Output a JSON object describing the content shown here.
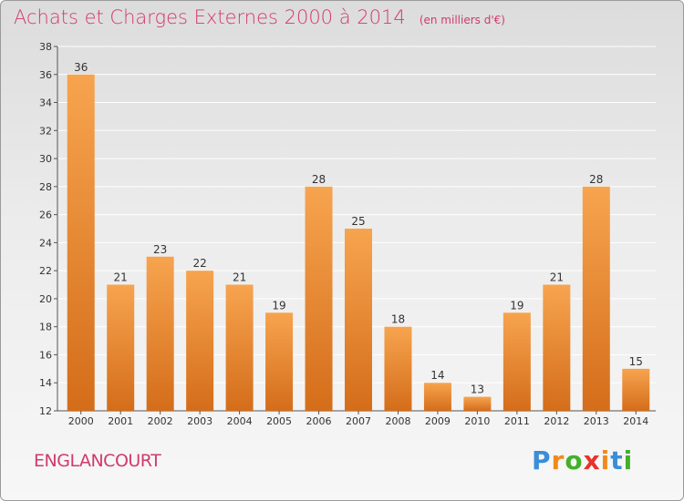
{
  "title": "Achats et Charges Externes 2000 à 2014",
  "subtitle": "(en milliers d'€)",
  "commune": "ENGLANCOURT",
  "brand": {
    "letters": [
      "P",
      "r",
      "o",
      "x",
      "i",
      "t",
      "i"
    ],
    "colors": [
      "#3a8ed8",
      "#f08a1c",
      "#43b02a",
      "#e8322c",
      "#f08a1c",
      "#3a8ed8",
      "#43b02a"
    ]
  },
  "colors": {
    "bar_top": "#f7a44f",
    "bar_bottom": "#d46d1a",
    "title": "#d13a6b",
    "grid": "#ffffff"
  },
  "chart_data": {
    "type": "bar",
    "categories": [
      "2000",
      "2001",
      "2002",
      "2003",
      "2004",
      "2005",
      "2006",
      "2007",
      "2008",
      "2009",
      "2010",
      "2011",
      "2012",
      "2013",
      "2014"
    ],
    "values": [
      36,
      21,
      23,
      22,
      21,
      19,
      28,
      25,
      18,
      14,
      13,
      19,
      21,
      28,
      15
    ],
    "ylim": [
      12,
      38
    ],
    "yticks": [
      12,
      14,
      16,
      18,
      20,
      22,
      24,
      26,
      28,
      30,
      32,
      34,
      36,
      38
    ],
    "grid": true
  }
}
